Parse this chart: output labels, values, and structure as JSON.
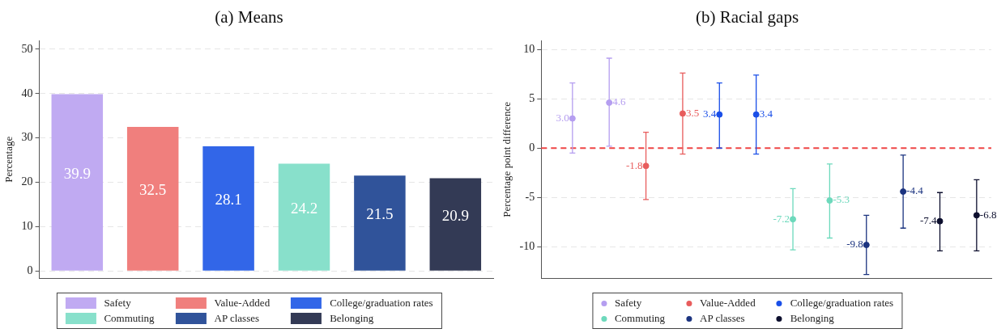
{
  "chart_data": [
    {
      "type": "bar",
      "title": "(a) Means",
      "ylabel": "Percentage",
      "categories": [
        null,
        null,
        null,
        null,
        null,
        null
      ],
      "ylim": [
        -1.7,
        52
      ],
      "yticks": [
        0,
        10,
        20,
        30,
        40,
        50
      ],
      "grid": "y",
      "legend": "bottom",
      "tick_labels": "y",
      "data_labels": true,
      "series": [
        {
          "name": "Safety",
          "color": "#c0aaf2",
          "values": [
            39.9,
            null,
            null,
            null,
            null,
            null
          ]
        },
        {
          "name": "Value-Added",
          "color": "#f07f7d",
          "values": [
            null,
            32.5,
            null,
            null,
            null,
            null
          ]
        },
        {
          "name": "College/graduation rates",
          "color": "#3266e8",
          "values": [
            null,
            null,
            28.1,
            null,
            null,
            null
          ]
        },
        {
          "name": "Commuting",
          "color": "#88e0cb",
          "values": [
            null,
            null,
            null,
            24.2,
            null,
            null
          ]
        },
        {
          "name": "AP classes",
          "color": "#30539a",
          "values": [
            null,
            null,
            null,
            null,
            21.5,
            null
          ]
        },
        {
          "name": "Belonging",
          "color": "#333a55",
          "values": [
            null,
            null,
            null,
            null,
            null,
            20.9
          ]
        }
      ]
    },
    {
      "type": "scatter",
      "title": "(b) Racial gaps",
      "ylabel": "Percentage point difference",
      "categories": [
        null,
        null,
        null,
        null,
        null,
        null,
        null,
        null,
        null,
        null,
        null,
        null
      ],
      "ylim": [
        -13.2,
        10.9
      ],
      "yticks": [
        -10,
        -5,
        0,
        5,
        10
      ],
      "grid": "y",
      "legend": "bottom",
      "tick_labels": "y",
      "marker": "circle",
      "ref_lines": [
        {
          "axis": "y",
          "value": 0,
          "color": "#f04545",
          "line_style": "dashed"
        }
      ],
      "series": [
        {
          "name": "Safety",
          "color": "#b59ef0",
          "values": [
            3.0,
            4.6,
            null,
            null,
            null,
            null,
            null,
            null,
            null,
            null,
            null,
            null
          ],
          "errors": [
            [
              -0.5,
              6.6
            ],
            [
              0.2,
              9.1
            ],
            null,
            null,
            null,
            null,
            null,
            null,
            null,
            null,
            null,
            null
          ],
          "value_labels": [
            "3.0",
            "4.6",
            null,
            null,
            null,
            null,
            null,
            null,
            null,
            null,
            null,
            null
          ]
        },
        {
          "name": "Value-Added",
          "color": "#e85c5c",
          "values": [
            null,
            null,
            -1.8,
            3.5,
            null,
            null,
            null,
            null,
            null,
            null,
            null,
            null
          ],
          "errors": [
            null,
            null,
            [
              -5.2,
              1.6
            ],
            [
              -0.6,
              7.6
            ],
            null,
            null,
            null,
            null,
            null,
            null,
            null,
            null
          ],
          "value_labels": [
            null,
            null,
            "-1.8",
            "3.5",
            null,
            null,
            null,
            null,
            null,
            null,
            null,
            null
          ]
        },
        {
          "name": "College/graduation rates",
          "color": "#1a4fe8",
          "values": [
            null,
            null,
            null,
            null,
            3.4,
            3.4,
            null,
            null,
            null,
            null,
            null,
            null
          ],
          "errors": [
            null,
            null,
            null,
            null,
            [
              0.0,
              6.6
            ],
            [
              -0.6,
              7.4
            ],
            null,
            null,
            null,
            null,
            null,
            null
          ],
          "value_labels": [
            null,
            null,
            null,
            null,
            "3.4",
            "3.4",
            null,
            null,
            null,
            null,
            null,
            null
          ]
        },
        {
          "name": "Commuting",
          "color": "#6dd9bc",
          "values": [
            null,
            null,
            null,
            null,
            null,
            null,
            -7.2,
            -5.3,
            null,
            null,
            null,
            null
          ],
          "errors": [
            null,
            null,
            null,
            null,
            null,
            null,
            [
              -10.3,
              -4.1
            ],
            [
              -9.1,
              -1.6
            ],
            null,
            null,
            null,
            null
          ],
          "value_labels": [
            null,
            null,
            null,
            null,
            null,
            null,
            "-7.2",
            "-5.3",
            null,
            null,
            null,
            null
          ]
        },
        {
          "name": "AP classes",
          "color": "#1c3480",
          "values": [
            null,
            null,
            null,
            null,
            null,
            null,
            null,
            null,
            -9.8,
            -4.4,
            null,
            null
          ],
          "errors": [
            null,
            null,
            null,
            null,
            null,
            null,
            null,
            null,
            [
              -12.8,
              -6.8
            ],
            [
              -8.1,
              -0.7
            ],
            null,
            null
          ],
          "value_labels": [
            null,
            null,
            null,
            null,
            null,
            null,
            null,
            null,
            "-9.8",
            "-4.4",
            null,
            null
          ]
        },
        {
          "name": "Belonging",
          "color": "#0d0f2e",
          "values": [
            null,
            null,
            null,
            null,
            null,
            null,
            null,
            null,
            null,
            null,
            -7.4,
            -6.8
          ],
          "errors": [
            null,
            null,
            null,
            null,
            null,
            null,
            null,
            null,
            null,
            null,
            [
              -10.4,
              -4.5
            ],
            [
              -10.4,
              -3.2
            ]
          ],
          "value_labels": [
            null,
            null,
            null,
            null,
            null,
            null,
            null,
            null,
            null,
            null,
            "-7.4",
            "-6.8"
          ]
        }
      ]
    }
  ]
}
